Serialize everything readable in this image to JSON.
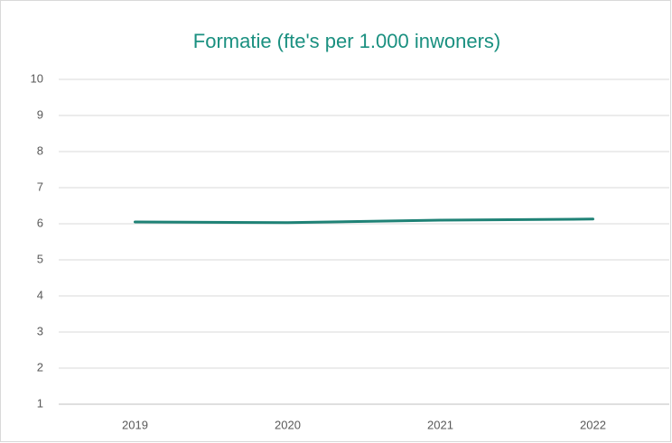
{
  "chart_data": {
    "type": "line",
    "title": "Formatie (fte's per 1.000 inwoners)",
    "categories": [
      "2019",
      "2020",
      "2021",
      "2022"
    ],
    "series": [
      {
        "name": "Formatie",
        "color": "#1f8276",
        "values": [
          6.05,
          6.03,
          6.1,
          6.13
        ]
      }
    ],
    "ylim": [
      1,
      10
    ],
    "yticks": [
      1,
      2,
      3,
      4,
      5,
      6,
      7,
      8,
      9,
      10
    ],
    "grid": true
  }
}
